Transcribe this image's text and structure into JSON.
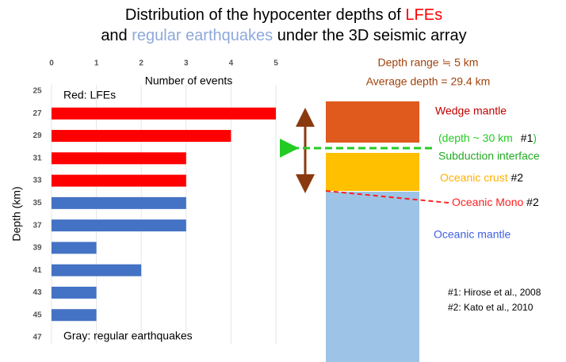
{
  "chart_data": {
    "type": "bar",
    "orientation": "horizontal",
    "title": [
      [
        {
          "text": "Distribution of the hypocenter depths of ",
          "color": "#000000"
        },
        {
          "text": "LFEs",
          "color": "#ff0000"
        }
      ],
      [
        {
          "text": "and ",
          "color": "#000000"
        },
        {
          "text": "regular earthquakes",
          "color": "#8ea9db"
        },
        {
          "text": " under the 3D seismic array",
          "color": "#000000"
        }
      ]
    ],
    "x_label": "Number of events",
    "y_label": "Depth (km)",
    "categories": [
      "25",
      "27",
      "29",
      "31",
      "33",
      "35",
      "37",
      "39",
      "41",
      "43",
      "45",
      "47"
    ],
    "series": [
      {
        "name": "Red: LFEs",
        "color": "#ff0000",
        "values": [
          null,
          5,
          4,
          3,
          3,
          null,
          null,
          null,
          null,
          null,
          null,
          null
        ]
      },
      {
        "name": "Gray: regular earthquakes",
        "color": "#4472c4",
        "values": [
          null,
          null,
          null,
          null,
          null,
          3,
          3,
          1,
          2,
          1,
          1,
          null
        ]
      }
    ],
    "xlim": [
      0,
      5
    ],
    "xticks": [
      0,
      1,
      2,
      3,
      4,
      5
    ],
    "grid": true
  },
  "diagram": {
    "depth_range": "Depth range ≒  5 km",
    "average_depth": "Average depth  =  29.4 km",
    "wedge_mantle": "Wedge mantle",
    "interface_depth": [
      "(depth ~ 30 km",
      "#1",
      ")"
    ],
    "subduction_interface": "Subduction interface",
    "oceanic_crust": [
      "Oceanic crust",
      " #2"
    ],
    "oceanic_mono": [
      "Oceanic Mono",
      " #2"
    ],
    "oceanic_mantle": "Oceanic mantle",
    "references": [
      "#1: Hirose et al., 2008",
      "#2: Kato et al., 2010"
    ]
  }
}
